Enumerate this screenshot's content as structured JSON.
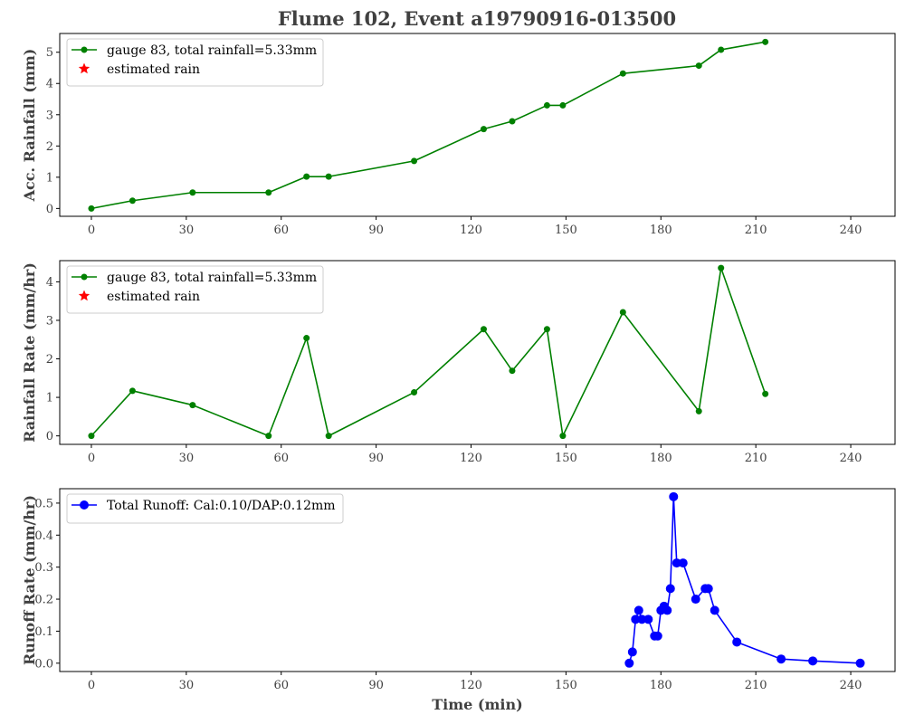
{
  "title": "Flume 102, Event a19790916-013500",
  "colors": {
    "rain_series": "#008000",
    "estimated": "#ff0000",
    "runoff_series": "#0000ff"
  },
  "chart_data": [
    {
      "type": "line",
      "ylabel": "Acc. Rainfall (mm)",
      "xlabel": "",
      "xlim": [
        -10,
        254
      ],
      "ylim": [
        -0.25,
        5.6
      ],
      "xticks": [
        0,
        30,
        60,
        90,
        120,
        150,
        180,
        210,
        240
      ],
      "yticks": [
        0,
        1,
        2,
        3,
        4,
        5
      ],
      "grid": false,
      "legend_position": "top-left",
      "series": [
        {
          "name": "gauge 83, total rainfall=5.33mm",
          "marker": "circle",
          "color": "#008000",
          "x": [
            0,
            13,
            32,
            56,
            68,
            75,
            102,
            124,
            133,
            144,
            149,
            168,
            192,
            199,
            213
          ],
          "y": [
            0,
            0.25,
            0.51,
            0.51,
            1.02,
            1.02,
            1.52,
            2.54,
            2.79,
            3.3,
            3.3,
            4.32,
            4.57,
            5.08,
            5.33
          ]
        },
        {
          "name": "estimated rain",
          "marker": "star",
          "color": "#ff0000",
          "x": [],
          "y": []
        }
      ]
    },
    {
      "type": "line",
      "ylabel": "Rainfall Rate (mm/hr)",
      "xlabel": "",
      "xlim": [
        -10,
        254
      ],
      "ylim": [
        -0.22,
        4.55
      ],
      "xticks": [
        0,
        30,
        60,
        90,
        120,
        150,
        180,
        210,
        240
      ],
      "yticks": [
        0,
        1,
        2,
        3,
        4
      ],
      "grid": false,
      "legend_position": "top-left",
      "series": [
        {
          "name": "gauge 83, total rainfall=5.33mm",
          "marker": "circle",
          "color": "#008000",
          "x": [
            0,
            13,
            32,
            56,
            68,
            75,
            102,
            124,
            133,
            144,
            149,
            168,
            192,
            199,
            213
          ],
          "y": [
            0,
            1.17,
            0.8,
            0,
            2.54,
            0,
            1.13,
            2.77,
            1.69,
            2.77,
            0,
            3.21,
            0.64,
            4.36,
            1.09
          ]
        },
        {
          "name": "estimated rain",
          "marker": "star",
          "color": "#ff0000",
          "x": [],
          "y": []
        }
      ]
    },
    {
      "type": "line",
      "ylabel": "Runoff Rate (mm/hr)",
      "xlabel": "Time (min)",
      "xlim": [
        -10,
        254
      ],
      "ylim": [
        -0.026,
        0.545
      ],
      "xticks": [
        0,
        30,
        60,
        90,
        120,
        150,
        180,
        210,
        240
      ],
      "yticks": [
        0.0,
        0.1,
        0.2,
        0.3,
        0.4,
        0.5
      ],
      "grid": false,
      "legend_position": "top-left",
      "series": [
        {
          "name": "Total Runoff: Cal:0.10/DAP:0.12mm",
          "marker": "circle",
          "color": "#0000ff",
          "x": [
            170,
            171,
            172,
            173,
            174,
            176,
            178,
            179,
            180,
            181,
            182,
            183,
            184,
            185,
            187,
            191,
            194,
            195,
            197,
            204,
            218,
            228,
            243
          ],
          "y": [
            0,
            0.035,
            0.137,
            0.165,
            0.137,
            0.137,
            0.085,
            0.085,
            0.165,
            0.178,
            0.165,
            0.233,
            0.52,
            0.313,
            0.313,
            0.2,
            0.233,
            0.233,
            0.165,
            0.066,
            0.013,
            0.007,
            0
          ]
        }
      ]
    }
  ]
}
